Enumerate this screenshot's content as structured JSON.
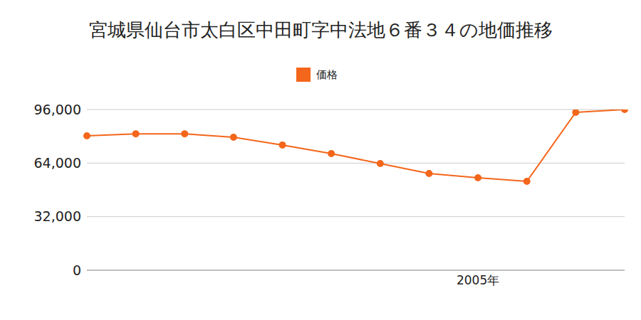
{
  "chart_data": {
    "type": "line",
    "title": "宮城県仙台市太白区中田町字中法地６番３４の地価推移",
    "categories": [
      null,
      null,
      null,
      null,
      null,
      null,
      null,
      null,
      "2005年",
      null,
      null,
      null
    ],
    "series": [
      {
        "name": "価格",
        "color": "#f4661b",
        "marker": "circle",
        "values": [
          80300,
          81500,
          81500,
          79400,
          74800,
          69700,
          63700,
          57800,
          55200,
          53100,
          94300,
          96000
        ]
      }
    ],
    "ylim": [
      0,
      96000
    ],
    "yticks": [
      0,
      {
        "value": 32000,
        "label": "32,000"
      },
      {
        "value": 64000,
        "label": "64,000"
      },
      {
        "value": 96000,
        "label": "96,000"
      }
    ],
    "grid": true,
    "legend": "top"
  }
}
